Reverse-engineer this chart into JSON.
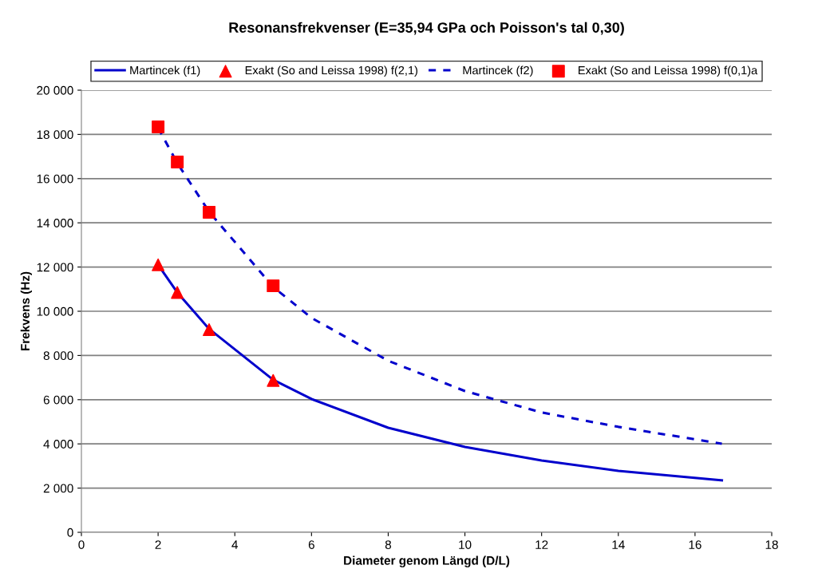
{
  "chart_data": {
    "type": "line",
    "title": "Resonansfrekvenser (E=35,94 GPa och Poisson's tal 0,30)",
    "xlabel": "Diameter genom Längd (D/L)",
    "ylabel": "Frekvens (Hz)",
    "xlim": [
      0,
      18
    ],
    "xticks": [
      0,
      2,
      4,
      6,
      8,
      10,
      12,
      14,
      16,
      18
    ],
    "ylim": [
      0,
      20000
    ],
    "yticks": [
      {
        "value": 0,
        "label": "0"
      },
      {
        "value": 2000,
        "label": "2 000"
      },
      {
        "value": 4000,
        "label": "4 000"
      },
      {
        "value": 6000,
        "label": "6 000"
      },
      {
        "value": 8000,
        "label": "8 000"
      },
      {
        "value": 10000,
        "label": "10 000"
      },
      {
        "value": 12000,
        "label": "12 000"
      },
      {
        "value": 14000,
        "label": "14 000"
      },
      {
        "value": 16000,
        "label": "16 000"
      },
      {
        "value": 18000,
        "label": "18 000"
      },
      {
        "value": 20000,
        "label": "20 000"
      }
    ],
    "grid": "y",
    "legend": "top",
    "series": [
      {
        "name": "Martincek (f1)",
        "color": "#0000cc",
        "line_style": "solid",
        "marker": "none",
        "x": [
          2,
          2.5,
          3.33,
          5,
          6,
          8,
          10,
          12,
          14,
          16.7
        ],
        "values": [
          12100,
          10850,
          9200,
          6900,
          6030,
          4730,
          3860,
          3250,
          2780,
          2350
        ]
      },
      {
        "name": "Exakt (So and Leissa 1998) f(2,1)",
        "type": "scatter",
        "color": "#ff0000",
        "marker": "triangle",
        "x": [
          2,
          2.5,
          3.33,
          5
        ],
        "values": [
          12100,
          10850,
          9170,
          6870
        ]
      },
      {
        "name": "Martincek (f2)",
        "color": "#0000cc",
        "line_style": "dashed",
        "marker": "none",
        "x": [
          2,
          2.5,
          3.33,
          5,
          6,
          8,
          10,
          12,
          14,
          16.7
        ],
        "values": [
          18300,
          16700,
          14500,
          11100,
          9700,
          7760,
          6390,
          5420,
          4770,
          4010
        ]
      },
      {
        "name": "Exakt (So and Leissa 1998) f(0,1)a",
        "type": "scatter",
        "color": "#ff0000",
        "marker": "square",
        "x": [
          2,
          2.5,
          3.33,
          5
        ],
        "values": [
          18340,
          16750,
          14480,
          11150
        ]
      }
    ]
  }
}
